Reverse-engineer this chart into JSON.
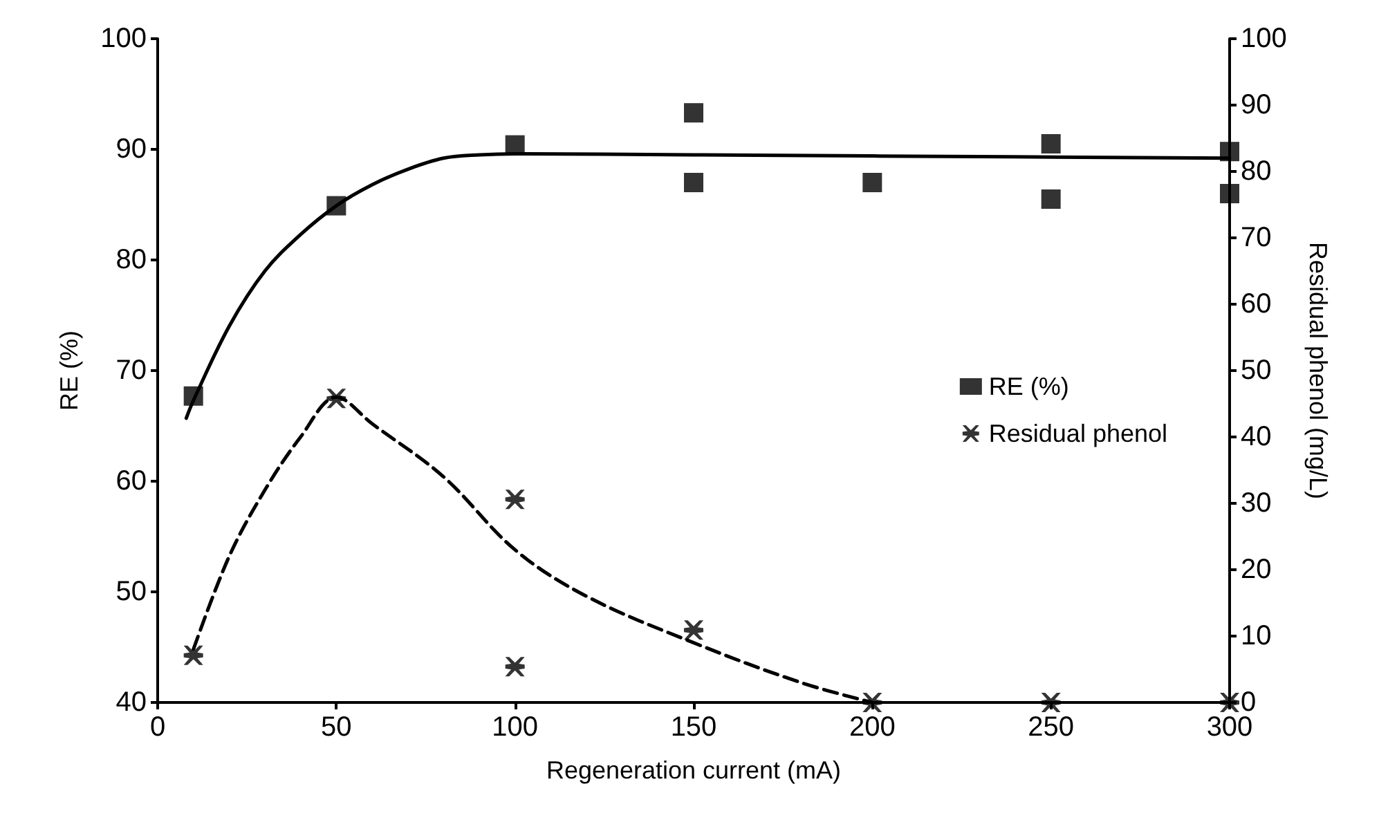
{
  "chart_data": {
    "type": "scatter",
    "xlabel": "Regeneration current (mA)",
    "ylabel": "RE (%)",
    "y2label": "Residual phenol (mg/L)",
    "xlim": [
      0,
      300
    ],
    "xticks": [
      0,
      50,
      100,
      150,
      200,
      250,
      300
    ],
    "ylim": [
      40,
      100
    ],
    "yticks": [
      40,
      50,
      60,
      70,
      80,
      90,
      100
    ],
    "y2lim": [
      0,
      100
    ],
    "y2ticks": [
      0,
      10,
      20,
      30,
      40,
      50,
      60,
      70,
      80,
      90,
      100
    ],
    "grid": false,
    "legend": "right",
    "series": [
      {
        "name": "RE (%)",
        "color": "#000000",
        "marker": "square",
        "line_style": "solid",
        "x": [
          10,
          50,
          100,
          150,
          150,
          200,
          250,
          250,
          300,
          300
        ],
        "values": [
          67.7,
          84.9,
          90.4,
          93.3,
          87.0,
          87.0,
          90.5,
          85.5,
          89.8,
          86.0
        ]
      },
      {
        "name": "Residual phenol",
        "axis": "y2",
        "color": "#000000",
        "marker": "star",
        "line_style": "dashed",
        "x": [
          10,
          50,
          100,
          100,
          150,
          200,
          250,
          300
        ],
        "values": [
          7.1,
          45.8,
          30.6,
          5.4,
          10.9,
          0,
          0,
          0
        ]
      },
      {
        "type": "line",
        "color": "#000000",
        "marker": "none",
        "line_style": "solid",
        "x": [
          8,
          10,
          20,
          30,
          40,
          50,
          60,
          70,
          80,
          90,
          100,
          150,
          200,
          300
        ],
        "values": [
          65.7,
          67.3,
          74,
          79,
          82.3,
          84.9,
          86.8,
          88.2,
          89.2,
          89.5,
          89.6,
          89.5,
          89.4,
          89.2
        ]
      },
      {
        "type": "line",
        "axis": "y2",
        "color": "#000000",
        "marker": "none",
        "line_style": "dashed",
        "x": [
          10,
          20,
          30,
          40,
          50,
          60,
          80,
          100,
          120,
          150,
          180,
          200
        ],
        "values": [
          8,
          22,
          32,
          40,
          46,
          42,
          34,
          23,
          16,
          9,
          3,
          0
        ]
      }
    ]
  }
}
